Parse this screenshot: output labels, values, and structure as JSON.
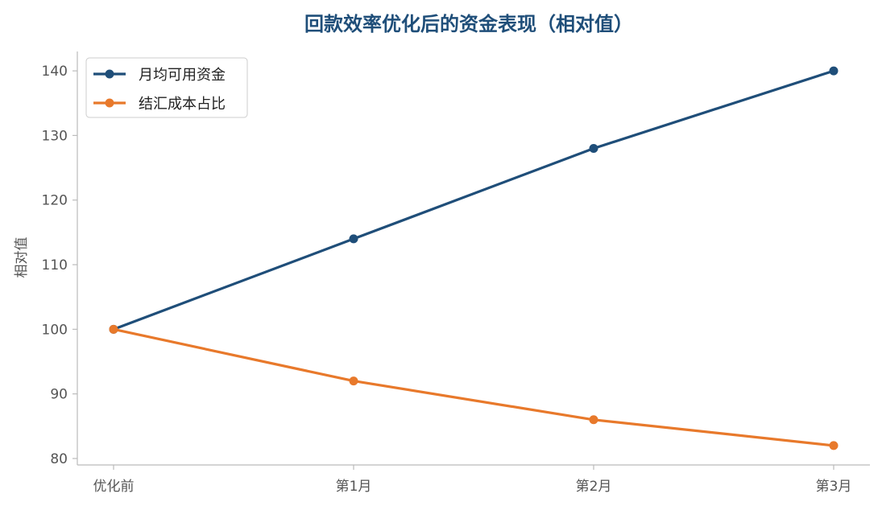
{
  "chart_data": {
    "type": "line",
    "title": "回款效率优化后的资金表现（相对值）",
    "xlabel": "",
    "ylabel": "相对值",
    "categories": [
      "优化前",
      "第1月",
      "第2月",
      "第3月"
    ],
    "ylim": [
      79,
      143
    ],
    "yticks": [
      80,
      90,
      100,
      110,
      120,
      130,
      140
    ],
    "grid": false,
    "legend_position": "top-left",
    "title_color": "#1f4e79",
    "series": [
      {
        "name": "月均可用资金",
        "color": "#1f4e79",
        "values": [
          100,
          114,
          128,
          140
        ]
      },
      {
        "name": "结汇成本占比",
        "color": "#e8792b",
        "values": [
          100,
          92,
          86,
          82
        ]
      }
    ]
  }
}
